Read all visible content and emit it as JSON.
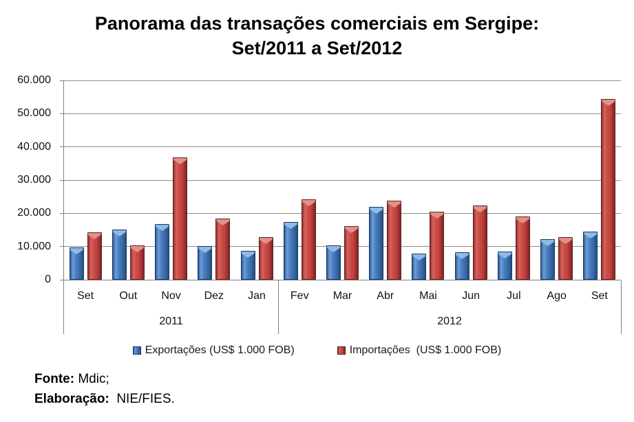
{
  "title": {
    "line1": "Panorama das transações comerciais em Sergipe:",
    "line2": "Set/2011 a Set/2012"
  },
  "chart_data": {
    "type": "bar",
    "categories": [
      "Set",
      "Out",
      "Nov",
      "Dez",
      "Jan",
      "Fev",
      "Mar",
      "Abr",
      "Mai",
      "Jun",
      "Jul",
      "Ago",
      "Set"
    ],
    "group_labels": [
      {
        "label": "2011",
        "span": 5
      },
      {
        "label": "2012",
        "span": 8
      }
    ],
    "series": [
      {
        "name": "Exportações (US$ 1.000 FOB)",
        "color": "#4a7ec0",
        "values": [
          9800,
          15000,
          16700,
          10200,
          8700,
          17400,
          10300,
          21900,
          7800,
          8300,
          8400,
          12200,
          14500
        ]
      },
      {
        "name": "Importações  (US$ 1.000 FOB)",
        "color": "#c24240",
        "values": [
          14300,
          10300,
          36900,
          18400,
          12900,
          24300,
          16200,
          23700,
          20400,
          22400,
          19100,
          12900,
          54500
        ]
      }
    ],
    "ylim": [
      0,
      60000
    ],
    "ytick_step": 10000,
    "ytick_labels": [
      "0",
      "10.000",
      "20.000",
      "30.000",
      "40.000",
      "50.000",
      "60.000"
    ],
    "grid": true,
    "legend_position": "bottom",
    "xlabel": "",
    "ylabel": ""
  },
  "footer": {
    "source_label": "Fonte:",
    "source_value": " Mdic;",
    "elab_label": "Elaboração:",
    "elab_value": "  NIE/FIES."
  }
}
